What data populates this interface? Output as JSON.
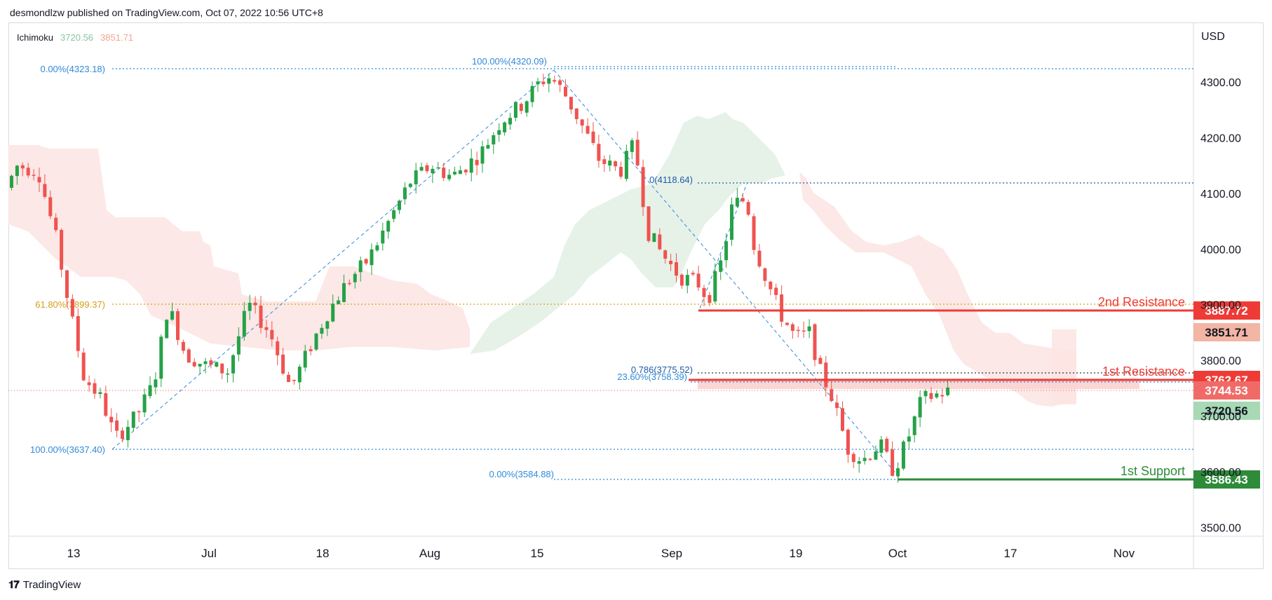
{
  "header": {
    "text": "desmondlzw published on TradingView.com, Oct 07, 2022 10:56 UTC+8"
  },
  "footer": {
    "brand": "TradingView"
  },
  "indicator": {
    "name": "Ichimoku",
    "value_a": "3720.56",
    "value_b": "3851.71"
  },
  "axis": {
    "currency": "USD"
  },
  "colors": {
    "up": "#26a148",
    "down": "#ef5350",
    "resistance": "#ef3b36",
    "support": "#2e8b3a",
    "fib": "#2f8ad8",
    "fib618": "#d4a017"
  },
  "chart_data": {
    "type": "candlestick",
    "y_ticks": [
      "4300.00",
      "4200.00",
      "4100.00",
      "4000.00",
      "3900.00",
      "3800.00",
      "3700.00",
      "3600.00",
      "3500.00"
    ],
    "x_ticks": [
      "13",
      "Jul",
      "18",
      "Aug",
      "15",
      "Sep",
      "19",
      "Oct",
      "17",
      "Nov"
    ],
    "fib_retracement_1": {
      "labels": [
        "0.00%(4323.18)",
        "61.80%(3899.37)",
        "100.00%(3637.40)"
      ]
    },
    "fib_retracement_2": {
      "labels": [
        "100.00%(4320.09)",
        "23.60%(3758.39)",
        "0.00%(3584.88)"
      ]
    },
    "fib_retracement_3": {
      "labels": [
        "0(4118.64)",
        "0.786(3775.52)"
      ]
    },
    "levels": [
      {
        "name": "2nd Resistance",
        "value": "3887.72",
        "kind": "resistance"
      },
      {
        "name": "1st Resistance",
        "value": "3762.67",
        "kind": "resistance"
      },
      {
        "name": "1st Support",
        "value": "3586.43",
        "kind": "support"
      }
    ],
    "price_tags": [
      {
        "value": "3851.71",
        "kind": "cloud-b"
      },
      {
        "value": "3744.53",
        "kind": "last"
      },
      {
        "value": "3720.56",
        "kind": "cloud-a"
      }
    ]
  }
}
